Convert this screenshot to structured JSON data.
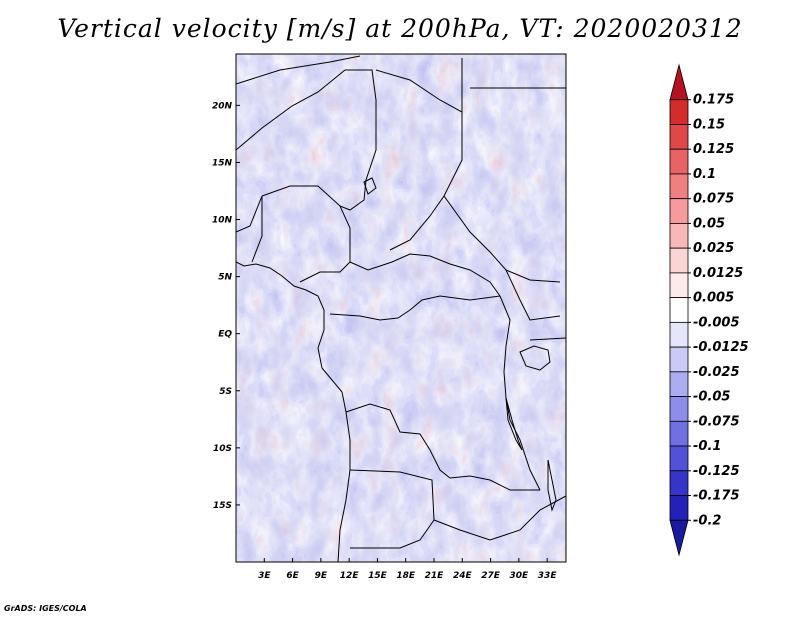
{
  "title": "Vertical velocity [m/s] at 200hPa, VT: 2020020312",
  "footer": "GrADS: IGES/COLA",
  "map": {
    "lon_ticks": [
      "3E",
      "6E",
      "9E",
      "12E",
      "15E",
      "18E",
      "21E",
      "24E",
      "27E",
      "30E",
      "33E"
    ],
    "lat_ticks": [
      "20N",
      "15N",
      "10N",
      "5N",
      "EQ",
      "5S",
      "10S",
      "15S"
    ],
    "lon_range": [
      0,
      35
    ],
    "lat_range": [
      -20,
      24.5
    ]
  },
  "colorbar": {
    "labels": [
      "0.175",
      "0.15",
      "0.125",
      "0.1",
      "0.075",
      "0.05",
      "0.025",
      "0.0125",
      "0.005",
      "-0.005",
      "-0.0125",
      "-0.025",
      "-0.05",
      "-0.075",
      "-0.1",
      "-0.125",
      "-0.175",
      "-0.2"
    ],
    "colors": [
      "#b5121f",
      "#d42b2b",
      "#e04848",
      "#e86464",
      "#ef8080",
      "#f49c9c",
      "#f8b8b8",
      "#fbd4d4",
      "#fdeaea",
      "#ffffff",
      "#e6e6fb",
      "#cacaf6",
      "#acacf0",
      "#8e8eea",
      "#7070e3",
      "#5252d8",
      "#3535c9",
      "#2222b8",
      "#1a1a9c"
    ]
  },
  "chart_data": {
    "type": "heatmap",
    "title": "Vertical velocity [m/s] at 200hPa, VT: 2020020312",
    "variable": "Vertical velocity",
    "units": "m/s",
    "level": "200hPa",
    "valid_time": "2020020312",
    "x_ticks": [
      "3E",
      "6E",
      "9E",
      "12E",
      "15E",
      "18E",
      "21E",
      "24E",
      "27E",
      "30E",
      "33E"
    ],
    "y_ticks": [
      "20N",
      "15N",
      "10N",
      "5N",
      "EQ",
      "5S",
      "10S",
      "15S"
    ],
    "contour_levels": [
      -0.2,
      -0.175,
      -0.125,
      -0.1,
      -0.075,
      -0.05,
      -0.025,
      -0.0125,
      -0.005,
      0.005,
      0.0125,
      0.025,
      0.05,
      0.075,
      0.1,
      0.125,
      0.15,
      0.175
    ]
  }
}
